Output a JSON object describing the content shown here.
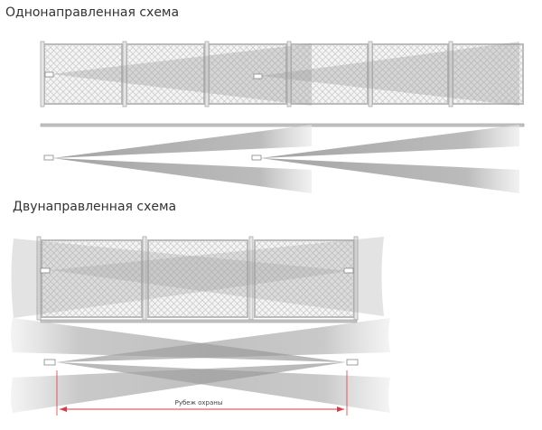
{
  "sections": [
    {
      "title": "Однонаправленная схема"
    },
    {
      "title": "Двунаправленная схема"
    }
  ],
  "zone_label": "Рубеж охраны",
  "colors": {
    "accent": "#e0393e",
    "beam": "#9a9a9a",
    "fence": "#c8c8c8"
  }
}
